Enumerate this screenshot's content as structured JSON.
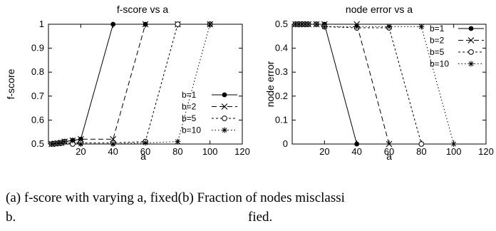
{
  "chart_data": [
    {
      "type": "line",
      "title": "f-score vs a",
      "xlabel": "a",
      "ylabel": "f-score",
      "xlim": [
        0,
        120
      ],
      "ylim": [
        0.5,
        1
      ],
      "xticks": [
        20,
        40,
        60,
        80,
        100,
        120
      ],
      "xtick_labels": [
        "20",
        "40",
        "60",
        "80",
        "100",
        "120"
      ],
      "yticks": [
        0.5,
        0.6,
        0.7,
        0.8,
        0.9,
        1
      ],
      "ytick_labels": [
        "0.5",
        "0.6",
        "0.7",
        "0.8",
        "0.9",
        "1"
      ],
      "legend_position": "bottom-right",
      "grid": false,
      "series": [
        {
          "name": "b=1",
          "marker": "dot",
          "dash": "solid",
          "x": [
            2,
            4,
            6,
            8,
            10,
            15,
            20,
            40,
            60,
            80,
            100
          ],
          "y": [
            0.5,
            0.502,
            0.503,
            0.505,
            0.51,
            0.515,
            0.52,
            1,
            1,
            1,
            1
          ]
        },
        {
          "name": "b=2",
          "marker": "x",
          "dash": "dashed",
          "x": [
            2,
            4,
            6,
            8,
            10,
            15,
            20,
            40,
            60,
            80,
            100
          ],
          "y": [
            0.5,
            0.502,
            0.503,
            0.505,
            0.51,
            0.515,
            0.52,
            0.52,
            1,
            1,
            1
          ]
        },
        {
          "name": "b=5",
          "marker": "circle",
          "dash": "shortdash",
          "x": [
            2,
            4,
            6,
            8,
            10,
            15,
            20,
            40,
            60,
            80,
            100
          ],
          "y": [
            0.5,
            0.502,
            0.503,
            0.505,
            0.51,
            0.5,
            0.505,
            0.505,
            0.51,
            1,
            1
          ]
        },
        {
          "name": "b=10",
          "marker": "star",
          "dash": "dotted",
          "x": [
            2,
            4,
            6,
            8,
            10,
            15,
            20,
            40,
            60,
            80,
            100
          ],
          "y": [
            0.5,
            0.502,
            0.503,
            0.505,
            0.51,
            0.515,
            0.5,
            0.5,
            0.505,
            0.51,
            1
          ]
        }
      ]
    },
    {
      "type": "line",
      "title": "node error vs a",
      "xlabel": "a",
      "ylabel": "node error",
      "xlim": [
        0,
        120
      ],
      "ylim": [
        0,
        0.5
      ],
      "xticks": [
        20,
        40,
        60,
        80,
        100,
        120
      ],
      "xtick_labels": [
        "20",
        "40",
        "60",
        "80",
        "100",
        "120"
      ],
      "yticks": [
        0,
        0.1,
        0.2,
        0.3,
        0.4,
        0.5
      ],
      "ytick_labels": [
        "0",
        "0.1",
        "0.2",
        "0.3",
        "0.4",
        "0.5"
      ],
      "legend_position": "top-right",
      "grid": false,
      "series": [
        {
          "name": "b=1",
          "marker": "dot",
          "dash": "solid",
          "x": [
            2,
            4,
            6,
            8,
            10,
            15,
            20,
            40
          ],
          "y": [
            0.5,
            0.5,
            0.5,
            0.5,
            0.5,
            0.5,
            0.5,
            0
          ]
        },
        {
          "name": "b=2",
          "marker": "x",
          "dash": "dashed",
          "x": [
            2,
            4,
            6,
            8,
            10,
            15,
            20,
            40,
            60
          ],
          "y": [
            0.5,
            0.5,
            0.5,
            0.5,
            0.5,
            0.5,
            0.5,
            0.5,
            0
          ]
        },
        {
          "name": "b=5",
          "marker": "circle",
          "dash": "shortdash",
          "x": [
            2,
            4,
            6,
            8,
            10,
            15,
            20,
            40,
            60,
            80
          ],
          "y": [
            0.5,
            0.5,
            0.5,
            0.5,
            0.5,
            0.5,
            0.49,
            0.485,
            0.485,
            0
          ]
        },
        {
          "name": "b=10",
          "marker": "star",
          "dash": "dotted",
          "x": [
            2,
            4,
            6,
            8,
            10,
            15,
            20,
            40,
            60,
            80,
            100
          ],
          "y": [
            0.5,
            0.5,
            0.5,
            0.5,
            0.5,
            0.5,
            0.49,
            0.49,
            0.49,
            0.49,
            0
          ]
        }
      ]
    }
  ],
  "captions": {
    "line1": "(a) f-score with varying a, fixed(b) Fraction of nodes misclassi",
    "line2_left": "b.",
    "line2_right": "fied."
  }
}
